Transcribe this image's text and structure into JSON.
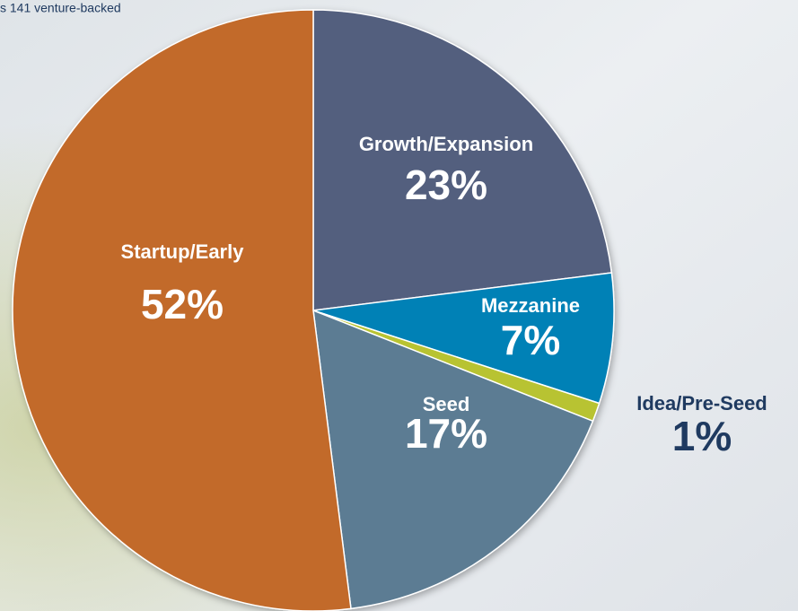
{
  "chart_data": {
    "type": "pie",
    "subtitle": "s 141 venture-backed",
    "categories": [
      "Growth/Expansion",
      "Mezzanine",
      "Idea/Pre-Seed",
      "Seed",
      "Startup/Early"
    ],
    "values": [
      23,
      7,
      1,
      17,
      52
    ],
    "value_labels": [
      "23%",
      "7%",
      "1%",
      "17%",
      "52%"
    ],
    "colors": [
      "#525f7e",
      "#0081b6",
      "#b8c331",
      "#5b7c93",
      "#c26b2a"
    ]
  }
}
